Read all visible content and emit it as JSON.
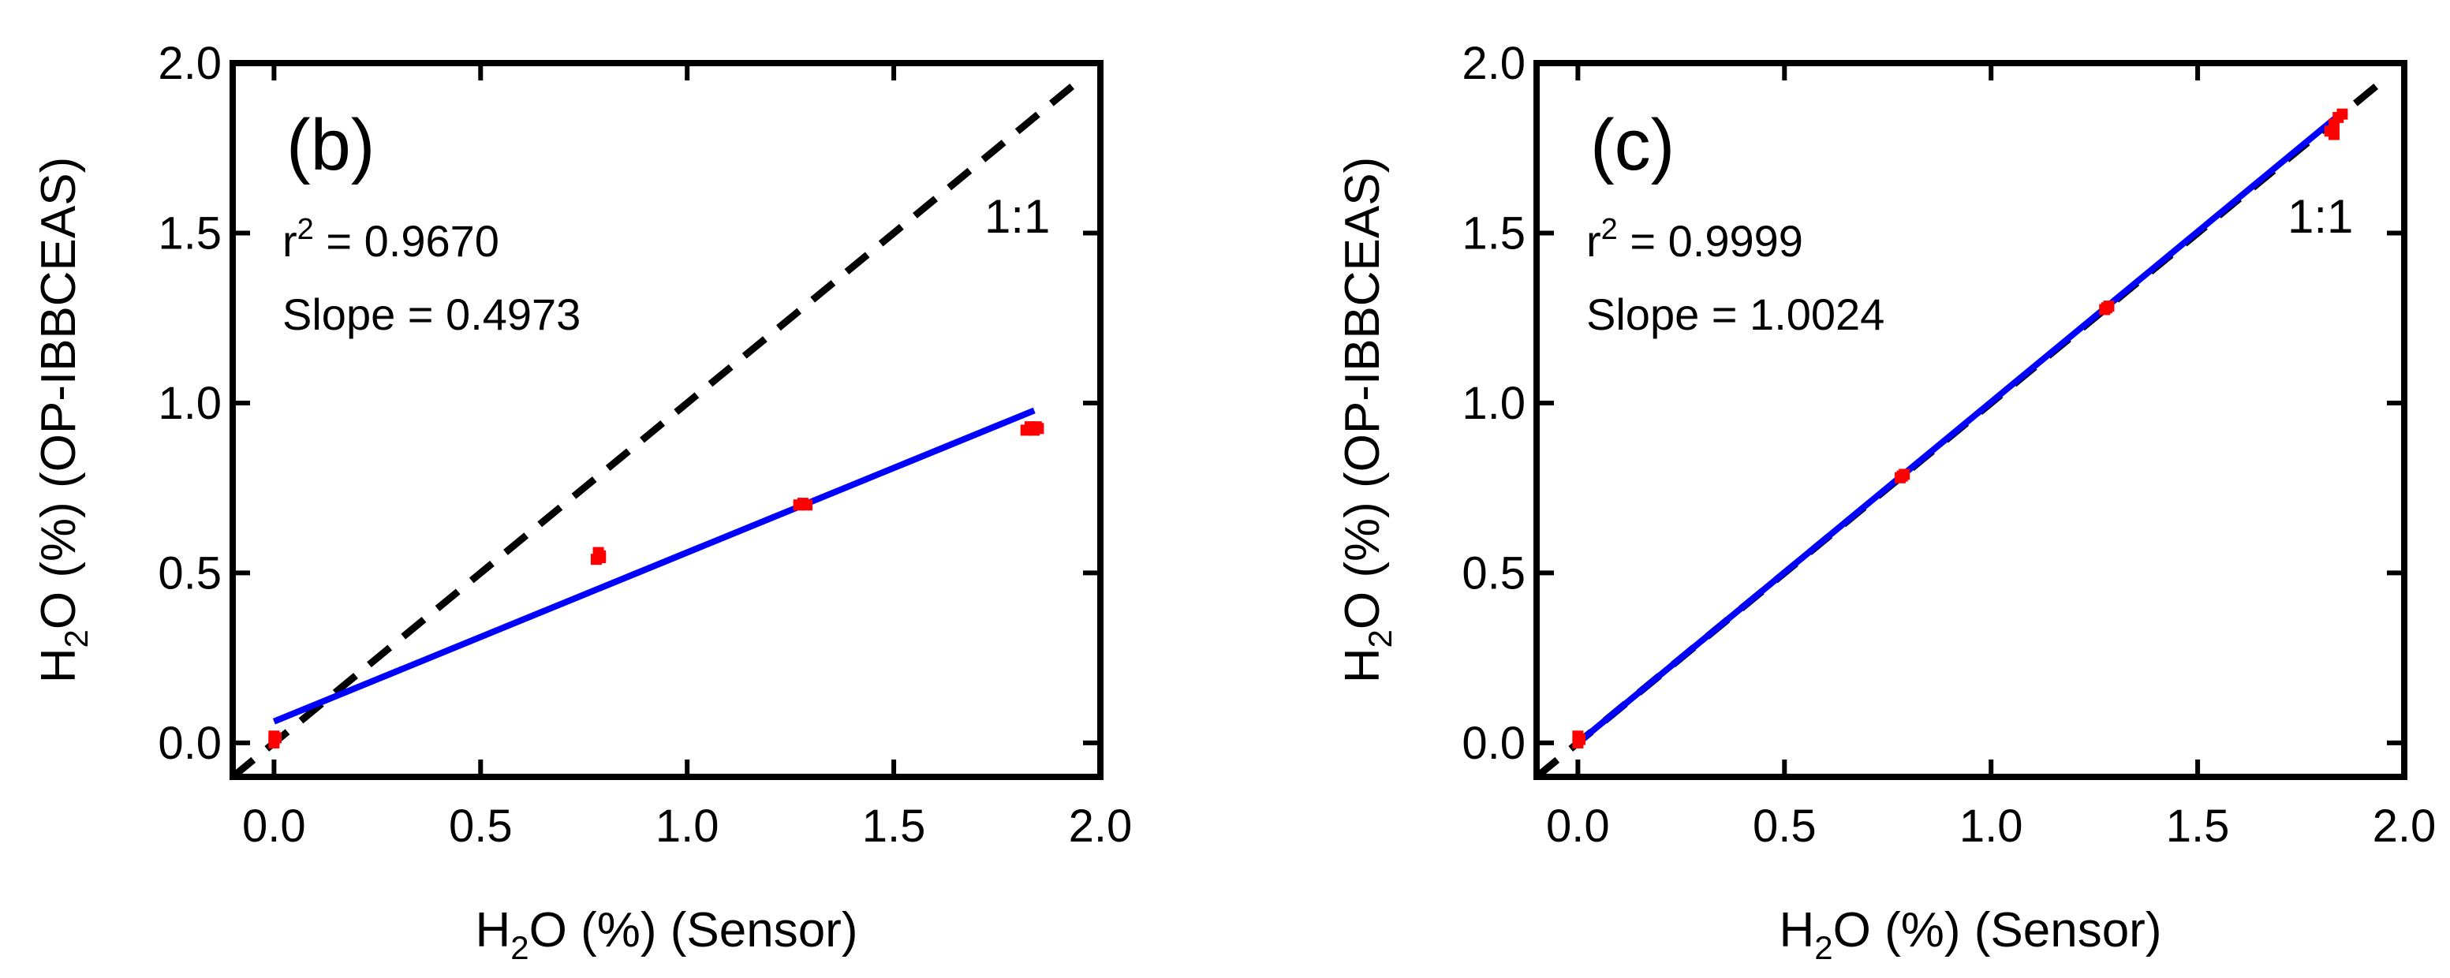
{
  "chart_data": [
    {
      "type": "scatter",
      "panel_label": "(b)",
      "xlabel": {
        "prefix": "H",
        "sub": "2",
        "suffix": "O (%) (Sensor)"
      },
      "ylabel": {
        "prefix": "H",
        "sub": "2",
        "suffix": "O (%) (OP-IBBCEAS)"
      },
      "xlim": [
        -0.1,
        2.0
      ],
      "ylim": [
        -0.1,
        2.0
      ],
      "xticks": [
        "0.0",
        "0.5",
        "1.0",
        "1.5",
        "2.0"
      ],
      "yticks": [
        "0.0",
        "0.5",
        "1.0",
        "1.5",
        "2.0"
      ],
      "tick_values": [
        0.0,
        0.5,
        1.0,
        1.5,
        2.0
      ],
      "r2": {
        "prefix": "r",
        "sup": "2",
        "suffix": " = 0.9670"
      },
      "slope_text": "Slope = 0.4973",
      "one_to_one_label": "1:1",
      "fit_line": {
        "color": "#0000ff",
        "x": [
          0.0,
          1.84
        ],
        "y": [
          0.063,
          0.978
        ]
      },
      "one_to_one_line": {
        "color": "#000000",
        "style": "dashed",
        "x": [
          -0.1,
          1.94
        ],
        "y": [
          -0.1,
          1.94
        ]
      },
      "points": {
        "color": "#ff0000",
        "series": [
          {
            "x": [
              0.0,
              0.0,
              0.005,
              0.0
            ],
            "y": [
              0.0,
              0.01,
              0.015,
              0.02
            ]
          },
          {
            "x": [
              0.78,
              0.79,
              0.785,
              0.79
            ],
            "y": [
              0.54,
              0.55,
              0.56,
              0.545
            ]
          },
          {
            "x": [
              1.27,
              1.28,
              1.29
            ],
            "y": [
              0.7,
              0.705,
              0.7
            ]
          },
          {
            "x": [
              1.82,
              1.83,
              1.84,
              1.845,
              1.85
            ],
            "y": [
              0.92,
              0.93,
              0.92,
              0.93,
              0.925
            ]
          }
        ]
      }
    },
    {
      "type": "scatter",
      "panel_label": "(c)",
      "xlabel": {
        "prefix": "H",
        "sub": "2",
        "suffix": "O (%) (Sensor)"
      },
      "ylabel": {
        "prefix": "H",
        "sub": "2",
        "suffix": "O (%) (OP-IBBCEAS)"
      },
      "xlim": [
        -0.1,
        2.0
      ],
      "ylim": [
        -0.1,
        2.0
      ],
      "xticks": [
        "0.0",
        "0.5",
        "1.0",
        "1.5",
        "2.0"
      ],
      "yticks": [
        "0.0",
        "0.5",
        "1.0",
        "1.5",
        "2.0"
      ],
      "tick_values": [
        0.0,
        0.5,
        1.0,
        1.5,
        2.0
      ],
      "r2": {
        "prefix": "r",
        "sup": "2",
        "suffix": " = 0.9999"
      },
      "slope_text": "Slope = 1.0024",
      "one_to_one_label": "1:1",
      "fit_line": {
        "color": "#0000ff",
        "x": [
          0.0,
          1.85
        ],
        "y": [
          0.0,
          1.855
        ]
      },
      "one_to_one_line": {
        "color": "#000000",
        "style": "dashed",
        "x": [
          -0.1,
          1.94
        ],
        "y": [
          -0.1,
          1.94
        ]
      },
      "points": {
        "color": "#ff0000",
        "series": [
          {
            "x": [
              0.0,
              0.005,
              0.0
            ],
            "y": [
              0.0,
              0.01,
              0.02
            ]
          },
          {
            "x": [
              0.78,
              0.785,
              0.79
            ],
            "y": [
              0.78,
              0.785,
              0.79
            ]
          },
          {
            "x": [
              1.275,
              1.28,
              1.285
            ],
            "y": [
              1.275,
              1.28,
              1.285
            ]
          },
          {
            "x": [
              1.82,
              1.83,
              1.84,
              1.85,
              1.83
            ],
            "y": [
              1.8,
              1.82,
              1.84,
              1.85,
              1.79
            ]
          }
        ]
      }
    }
  ]
}
